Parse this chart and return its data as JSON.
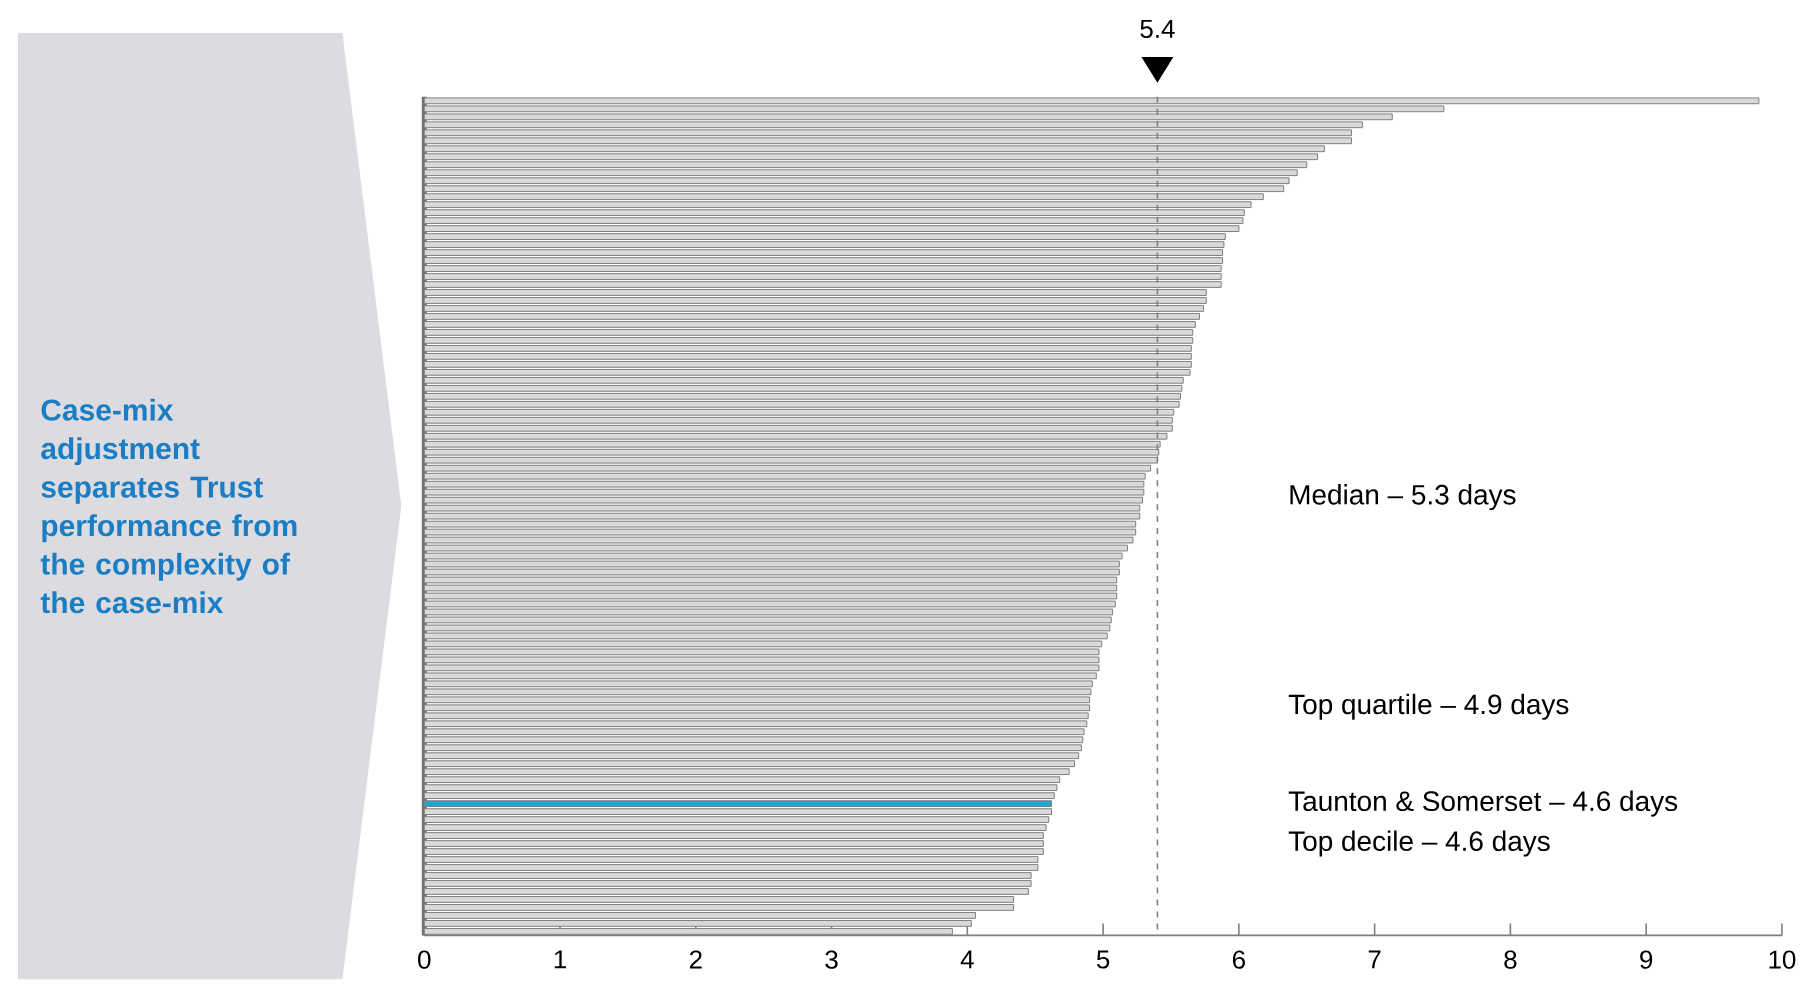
{
  "chart_data": {
    "type": "bar",
    "orientation": "horizontal",
    "title": "Case-mix adjustment separates Trust performance from the complexity of the case-mix",
    "categories": [
      null,
      null,
      null,
      null,
      null,
      null,
      null,
      null,
      null,
      null,
      null,
      null,
      null,
      null,
      null,
      null,
      null,
      null,
      null,
      null,
      null,
      null,
      null,
      null,
      null,
      null,
      null,
      null,
      null,
      null,
      null,
      null,
      null,
      null,
      null,
      null,
      null,
      null,
      null,
      null,
      null,
      null,
      null,
      null,
      null,
      null,
      null,
      null,
      null,
      null,
      null,
      null,
      null,
      null,
      null,
      null,
      null,
      null,
      null,
      null,
      null,
      null,
      null,
      null,
      null,
      null,
      null,
      null,
      null,
      null,
      null,
      null,
      null,
      null,
      null,
      null,
      null,
      null,
      null,
      null,
      null,
      null,
      null,
      null,
      null,
      null,
      null,
      null,
      null,
      null,
      null,
      null,
      null,
      null,
      null,
      null,
      null,
      null,
      null,
      null,
      null,
      null,
      null,
      null,
      null
    ],
    "values": [
      9.83,
      7.51,
      7.13,
      6.91,
      6.83,
      6.83,
      6.63,
      6.58,
      6.5,
      6.43,
      6.37,
      6.33,
      6.18,
      6.09,
      6.04,
      6.03,
      6.0,
      5.9,
      5.89,
      5.88,
      5.88,
      5.87,
      5.87,
      5.87,
      5.76,
      5.76,
      5.74,
      5.71,
      5.68,
      5.66,
      5.66,
      5.65,
      5.65,
      5.65,
      5.64,
      5.59,
      5.58,
      5.57,
      5.56,
      5.52,
      5.51,
      5.51,
      5.47,
      5.42,
      5.41,
      5.4,
      5.35,
      5.31,
      5.3,
      5.3,
      5.29,
      5.27,
      5.27,
      5.24,
      5.24,
      5.22,
      5.18,
      5.14,
      5.12,
      5.12,
      5.1,
      5.1,
      5.1,
      5.09,
      5.07,
      5.06,
      5.05,
      5.03,
      4.99,
      4.97,
      4.97,
      4.97,
      4.95,
      4.92,
      4.91,
      4.9,
      4.9,
      4.89,
      4.88,
      4.86,
      4.85,
      4.84,
      4.82,
      4.79,
      4.75,
      4.68,
      4.66,
      4.64,
      4.62,
      4.62,
      4.6,
      4.58,
      4.56,
      4.56,
      4.56,
      4.52,
      4.52,
      4.47,
      4.47,
      4.45,
      4.34,
      4.34,
      4.06,
      4.03,
      3.89
    ],
    "colors": [
      "#d9d9d9",
      "#d9d9d9",
      "#d9d9d9",
      "#d9d9d9",
      "#d9d9d9",
      "#d9d9d9",
      "#d9d9d9",
      "#d9d9d9",
      "#d9d9d9",
      "#d9d9d9",
      "#d9d9d9",
      "#d9d9d9",
      "#d9d9d9",
      "#d9d9d9",
      "#d9d9d9",
      "#d9d9d9",
      "#d9d9d9",
      "#d9d9d9",
      "#d9d9d9",
      "#d9d9d9",
      "#d9d9d9",
      "#d9d9d9",
      "#d9d9d9",
      "#d9d9d9",
      "#d9d9d9",
      "#d9d9d9",
      "#d9d9d9",
      "#d9d9d9",
      "#d9d9d9",
      "#d9d9d9",
      "#d9d9d9",
      "#d9d9d9",
      "#d9d9d9",
      "#d9d9d9",
      "#d9d9d9",
      "#d9d9d9",
      "#d9d9d9",
      "#d9d9d9",
      "#d9d9d9",
      "#d9d9d9",
      "#d9d9d9",
      "#d9d9d9",
      "#d9d9d9",
      "#d9d9d9",
      "#d9d9d9",
      "#d9d9d9",
      "#d9d9d9",
      "#d9d9d9",
      "#d9d9d9",
      "#d9d9d9",
      "#d9d9d9",
      "#d9d9d9",
      "#d9d9d9",
      "#d9d9d9",
      "#d9d9d9",
      "#d9d9d9",
      "#d9d9d9",
      "#d9d9d9",
      "#d9d9d9",
      "#d9d9d9",
      "#d9d9d9",
      "#d9d9d9",
      "#d9d9d9",
      "#d9d9d9",
      "#d9d9d9",
      "#d9d9d9",
      "#d9d9d9",
      "#d9d9d9",
      "#d9d9d9",
      "#d9d9d9",
      "#d9d9d9",
      "#d9d9d9",
      "#d9d9d9",
      "#d9d9d9",
      "#d9d9d9",
      "#d9d9d9",
      "#d9d9d9",
      "#d9d9d9",
      "#d9d9d9",
      "#d9d9d9",
      "#d9d9d9",
      "#d9d9d9",
      "#d9d9d9",
      "#d9d9d9",
      "#d9d9d9",
      "#d9d9d9",
      "#d9d9d9",
      "#d9d9d9",
      "#1ea7cf",
      "#d9d9d9",
      "#d9d9d9",
      "#d9d9d9",
      "#d9d9d9",
      "#d9d9d9",
      "#d9d9d9",
      "#d9d9d9",
      "#d9d9d9",
      "#d9d9d9",
      "#d9d9d9",
      "#d9d9d9",
      "#d9d9d9",
      "#d9d9d9",
      "#d9d9d9",
      "#d9d9d9",
      "#d9d9d9"
    ],
    "xlim": [
      0,
      10
    ],
    "xticks": [
      0,
      1,
      2,
      3,
      4,
      5,
      6,
      7,
      8,
      9,
      10
    ],
    "ref_lines": [
      {
        "axis": "x",
        "value": 5.4,
        "label": "5.4",
        "line_style": "dashed",
        "color": "#808080"
      }
    ],
    "annotations": [
      "Median – 5.3 days",
      "Top quartile – 4.9 days",
      "Taunton & Somerset – 4.6 days",
      "Top decile – 4.6 days"
    ]
  }
}
